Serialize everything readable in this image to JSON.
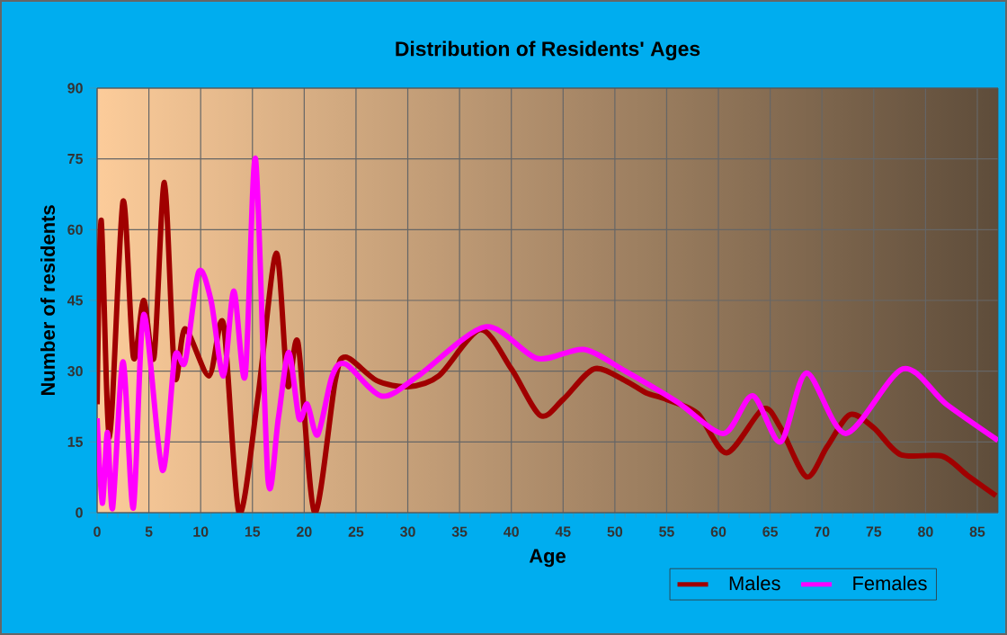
{
  "chart_data": {
    "type": "line",
    "title": "Distribution of Residents' Ages",
    "xlabel": "Age",
    "ylabel": "Number of residents",
    "xlim": [
      0,
      87
    ],
    "xticks": [
      0,
      5,
      10,
      15,
      20,
      25,
      30,
      35,
      40,
      45,
      50,
      55,
      60,
      65,
      70,
      75,
      80,
      85
    ],
    "ylim": [
      0,
      90
    ],
    "yticks": [
      0,
      15,
      30,
      45,
      60,
      75,
      90
    ],
    "grid": true,
    "legend": "bottom right",
    "marker": "none",
    "line_style": "solid",
    "series": [
      {
        "name": "Males",
        "color": "#a00000",
        "x": [
          0,
          0.4,
          1.2,
          2.5,
          3.5,
          4.5,
          5.5,
          6.5,
          7.5,
          8.5,
          10.8,
          12.2,
          13.7,
          15.5,
          17.3,
          18.4,
          19.4,
          21,
          23,
          24,
          27,
          30,
          33,
          37,
          40,
          42.8,
          45,
          48,
          51,
          53,
          55,
          58,
          60.8,
          64.3,
          66,
          68.5,
          70.5,
          72.7,
          75,
          77.6,
          81.6,
          84,
          86.8
        ],
        "values": [
          23,
          62,
          16,
          66,
          33,
          45,
          33,
          70,
          29,
          39,
          29,
          40,
          0,
          24,
          55,
          27,
          36,
          0,
          28,
          33,
          28,
          26.7,
          29,
          38.8,
          30.5,
          20.6,
          24,
          30.5,
          28,
          25.4,
          24,
          21,
          12.7,
          22,
          18,
          7.6,
          14,
          20.8,
          18,
          12.3,
          12,
          8,
          3.6
        ]
      },
      {
        "name": "Females",
        "color": "#ff00ff",
        "x": [
          0,
          0.5,
          1,
          1.5,
          2.5,
          3.5,
          4.5,
          6.3,
          7.5,
          8.5,
          9.8,
          11,
          12.2,
          13.2,
          14.3,
          15.3,
          16.5,
          17.5,
          18.5,
          19.5,
          20.3,
          21.3,
          22.7,
          24,
          27.5,
          31,
          37.5,
          42.5,
          47,
          51,
          56,
          60.5,
          63.3,
          66,
          68.5,
          72.3,
          77.8,
          82,
          87
        ],
        "values": [
          20,
          2,
          17,
          1,
          32,
          1,
          42,
          9,
          33,
          32,
          51,
          45,
          29,
          47,
          29,
          75,
          7,
          20,
          34,
          20,
          23,
          16.5,
          29,
          31.5,
          24.7,
          29,
          39.4,
          32.7,
          34.6,
          30,
          23.5,
          16.8,
          24.8,
          15,
          29.6,
          16.8,
          30.5,
          23,
          15.3
        ]
      }
    ]
  }
}
